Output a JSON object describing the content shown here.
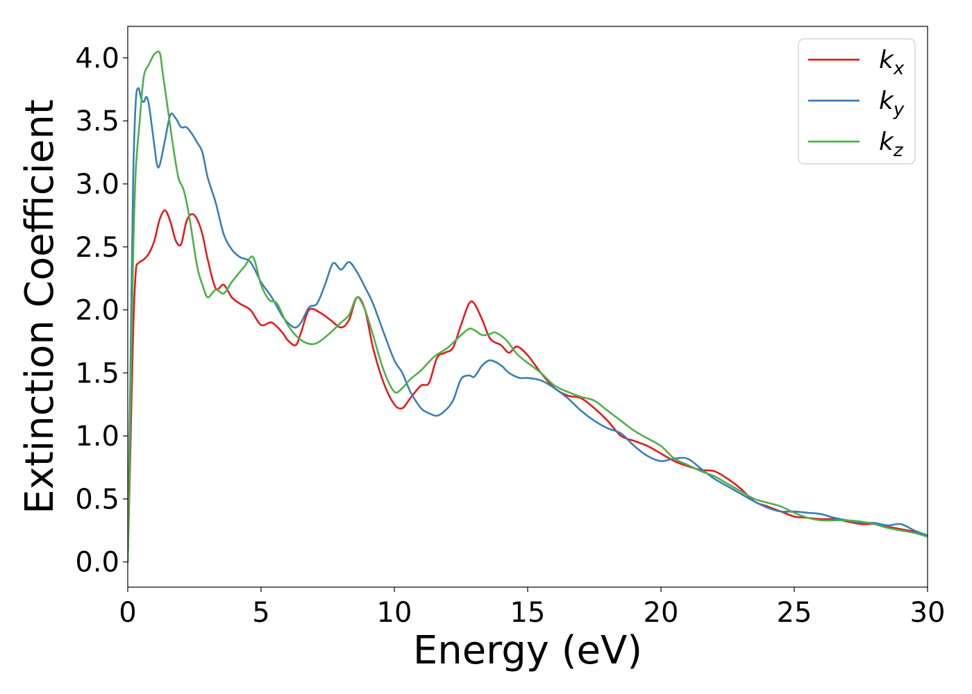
{
  "chart_data": {
    "type": "line",
    "xlabel": "Energy (eV)",
    "ylabel": "Extinction Coefficient",
    "xlim": [
      0,
      30
    ],
    "ylim": [
      -0.2,
      4.25
    ],
    "xticks": [
      0,
      5,
      10,
      15,
      20,
      25,
      30
    ],
    "xtick_labels": [
      "0",
      "5",
      "10",
      "15",
      "20",
      "25",
      "30"
    ],
    "yticks": [
      0.0,
      0.5,
      1.0,
      1.5,
      2.0,
      2.5,
      3.0,
      3.5,
      4.0
    ],
    "ytick_labels": [
      "0.0",
      "0.5",
      "1.0",
      "1.5",
      "2.0",
      "2.5",
      "3.0",
      "3.5",
      "4.0"
    ],
    "grid": false,
    "legend_position": "top-right",
    "series": [
      {
        "name": "k",
        "sub": "x",
        "color": "#e41a1c",
        "x": [
          0,
          0.1,
          0.2,
          0.3,
          0.4,
          0.6,
          0.8,
          1.0,
          1.2,
          1.4,
          1.6,
          1.8,
          2.0,
          2.2,
          2.4,
          2.6,
          2.8,
          3.0,
          3.3,
          3.6,
          3.9,
          4.2,
          4.6,
          5.0,
          5.4,
          5.8,
          6.0,
          6.3,
          6.5,
          6.8,
          7.2,
          7.6,
          8.0,
          8.3,
          8.6,
          8.9,
          9.2,
          9.6,
          10.0,
          10.3,
          10.6,
          11.0,
          11.3,
          11.6,
          11.9,
          12.2,
          12.5,
          12.8,
          13.0,
          13.3,
          13.6,
          14.0,
          14.3,
          14.6,
          15.0,
          15.5,
          16.0,
          16.5,
          17.0,
          17.5,
          18.0,
          18.5,
          19.0,
          19.5,
          20.0,
          20.5,
          21.0,
          21.5,
          22.0,
          22.5,
          23.0,
          23.5,
          24.0,
          24.5,
          25.0,
          25.5,
          26.0,
          26.5,
          27.0,
          27.5,
          28.0,
          28.5,
          29.0,
          29.5,
          30.0
        ],
        "y": [
          0.0,
          0.9,
          1.8,
          2.3,
          2.37,
          2.4,
          2.45,
          2.55,
          2.72,
          2.79,
          2.7,
          2.55,
          2.52,
          2.7,
          2.76,
          2.72,
          2.6,
          2.4,
          2.17,
          2.2,
          2.1,
          2.05,
          2.0,
          1.88,
          1.9,
          1.82,
          1.76,
          1.72,
          1.82,
          2.0,
          1.98,
          1.92,
          1.86,
          1.92,
          2.1,
          2.0,
          1.7,
          1.42,
          1.25,
          1.22,
          1.3,
          1.4,
          1.42,
          1.62,
          1.66,
          1.7,
          1.88,
          2.05,
          2.05,
          1.92,
          1.77,
          1.72,
          1.66,
          1.71,
          1.64,
          1.5,
          1.38,
          1.32,
          1.3,
          1.22,
          1.12,
          1.0,
          0.96,
          0.92,
          0.86,
          0.8,
          0.76,
          0.73,
          0.72,
          0.66,
          0.58,
          0.48,
          0.44,
          0.4,
          0.36,
          0.35,
          0.34,
          0.34,
          0.32,
          0.3,
          0.3,
          0.28,
          0.26,
          0.24,
          0.21
        ]
      },
      {
        "name": "k",
        "sub": "y",
        "color": "#377eb8",
        "x": [
          0,
          0.1,
          0.2,
          0.3,
          0.4,
          0.5,
          0.6,
          0.7,
          0.8,
          1.0,
          1.1,
          1.2,
          1.4,
          1.6,
          1.8,
          2.0,
          2.2,
          2.4,
          2.6,
          2.8,
          3.0,
          3.3,
          3.6,
          3.9,
          4.2,
          4.6,
          5.0,
          5.4,
          5.8,
          6.1,
          6.3,
          6.5,
          6.8,
          7.1,
          7.4,
          7.7,
          8.0,
          8.3,
          8.6,
          8.9,
          9.2,
          9.6,
          10.0,
          10.3,
          10.6,
          11.0,
          11.3,
          11.6,
          11.9,
          12.2,
          12.5,
          12.8,
          13.0,
          13.3,
          13.6,
          14.0,
          14.3,
          14.7,
          15.0,
          15.5,
          16.0,
          16.5,
          17.0,
          17.5,
          18.0,
          18.5,
          19.0,
          19.5,
          20.0,
          20.5,
          21.0,
          21.5,
          22.0,
          22.5,
          23.0,
          23.5,
          24.0,
          24.5,
          25.0,
          25.5,
          26.0,
          26.5,
          27.0,
          27.5,
          28.0,
          28.5,
          29.0,
          29.5,
          30.0
        ],
        "y": [
          0.0,
          1.5,
          3.0,
          3.65,
          3.76,
          3.68,
          3.65,
          3.69,
          3.62,
          3.3,
          3.15,
          3.15,
          3.35,
          3.55,
          3.52,
          3.45,
          3.45,
          3.4,
          3.33,
          3.25,
          3.05,
          2.85,
          2.6,
          2.48,
          2.42,
          2.38,
          2.22,
          2.1,
          1.95,
          1.88,
          1.86,
          1.9,
          2.02,
          2.05,
          2.2,
          2.37,
          2.32,
          2.38,
          2.3,
          2.18,
          2.05,
          1.82,
          1.6,
          1.5,
          1.35,
          1.22,
          1.18,
          1.16,
          1.2,
          1.28,
          1.45,
          1.48,
          1.47,
          1.56,
          1.6,
          1.56,
          1.5,
          1.46,
          1.46,
          1.44,
          1.38,
          1.3,
          1.2,
          1.12,
          1.06,
          1.02,
          0.92,
          0.84,
          0.8,
          0.82,
          0.82,
          0.74,
          0.66,
          0.6,
          0.54,
          0.48,
          0.43,
          0.4,
          0.4,
          0.39,
          0.38,
          0.35,
          0.33,
          0.31,
          0.31,
          0.29,
          0.3,
          0.25,
          0.21
        ]
      },
      {
        "name": "k",
        "sub": "z",
        "color": "#4daf4a",
        "x": [
          0,
          0.1,
          0.2,
          0.3,
          0.45,
          0.6,
          0.8,
          1.0,
          1.2,
          1.3,
          1.5,
          1.7,
          1.9,
          2.1,
          2.3,
          2.6,
          2.8,
          3.0,
          3.3,
          3.6,
          3.9,
          4.2,
          4.4,
          4.7,
          5.0,
          5.3,
          5.6,
          6.0,
          6.5,
          7.0,
          7.5,
          8.0,
          8.3,
          8.6,
          8.9,
          9.2,
          9.6,
          10.0,
          10.3,
          10.6,
          11.0,
          11.5,
          12.0,
          12.5,
          12.8,
          13.0,
          13.3,
          13.6,
          13.8,
          14.2,
          14.6,
          15.0,
          15.5,
          16.0,
          16.5,
          17.0,
          17.5,
          18.0,
          18.5,
          19.0,
          19.5,
          20.0,
          20.5,
          21.0,
          21.5,
          22.0,
          22.5,
          23.0,
          23.5,
          24.0,
          24.5,
          25.0,
          25.5,
          26.0,
          26.5,
          27.0,
          27.5,
          28.0,
          28.5,
          29.0,
          29.5,
          30.0
        ],
        "y": [
          0.0,
          1.2,
          2.4,
          3.1,
          3.5,
          3.85,
          3.95,
          4.03,
          4.04,
          3.9,
          3.6,
          3.3,
          3.05,
          2.95,
          2.75,
          2.35,
          2.2,
          2.1,
          2.16,
          2.13,
          2.22,
          2.3,
          2.35,
          2.42,
          2.2,
          2.08,
          2.05,
          1.88,
          1.76,
          1.73,
          1.8,
          1.9,
          1.96,
          2.1,
          2.0,
          1.8,
          1.52,
          1.35,
          1.38,
          1.45,
          1.52,
          1.63,
          1.7,
          1.8,
          1.85,
          1.84,
          1.8,
          1.81,
          1.82,
          1.76,
          1.65,
          1.58,
          1.5,
          1.4,
          1.35,
          1.31,
          1.28,
          1.2,
          1.12,
          1.04,
          0.98,
          0.92,
          0.82,
          0.77,
          0.72,
          0.68,
          0.62,
          0.56,
          0.5,
          0.47,
          0.44,
          0.39,
          0.35,
          0.33,
          0.33,
          0.33,
          0.32,
          0.3,
          0.27,
          0.25,
          0.23,
          0.2
        ]
      }
    ]
  }
}
